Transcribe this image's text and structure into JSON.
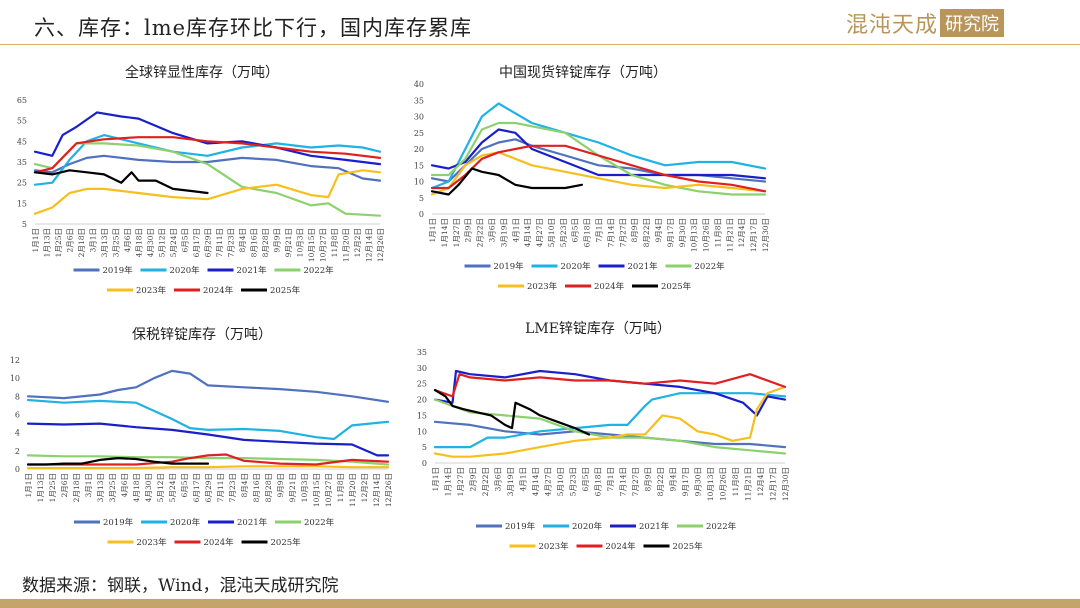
{
  "slide": {
    "title": "六、库存：lme库存环比下行，国内库存累库",
    "logo_script": "混沌天成",
    "logo_box": "研究院",
    "source": "数据来源：钢联，Wind，混沌天成研究院"
  },
  "colors": {
    "2019年": "#4f71be",
    "2020年": "#1fb2e4",
    "2021年": "#1a1fc9",
    "2022年": "#8dd06e",
    "2023年": "#f7bf1d",
    "2024年": "#e02020",
    "2025年": "#000000"
  },
  "chart_data": [
    {
      "id": "global",
      "type": "line",
      "title": "全球锌显性库存（万吨）",
      "xlabel": "",
      "ylabel": "",
      "ylim": [
        5,
        65
      ],
      "yticks": [
        5,
        15,
        25,
        35,
        45,
        55,
        65
      ],
      "x_tick_labels": [
        "1月1日",
        "1月13日",
        "1月25日",
        "2月6日",
        "2月18日",
        "3月1日",
        "3月13日",
        "3月25日",
        "4月6日",
        "4月18日",
        "4月30日",
        "5月12日",
        "5月24日",
        "6月5日",
        "6月17日",
        "6月29日",
        "7月11日",
        "7月23日",
        "8月4日",
        "8月16日",
        "8月28日",
        "9月9日",
        "9月21日",
        "10月3日",
        "10月15日",
        "10月27日",
        "11月8日",
        "11月20日",
        "12月2日",
        "12月14日",
        "12月26日"
      ],
      "grid": false,
      "legend": "bottom",
      "series": [
        {
          "name": "2019年",
          "x": [
            0,
            0.05,
            0.1,
            0.15,
            0.2,
            0.3,
            0.4,
            0.5,
            0.6,
            0.7,
            0.8,
            0.88,
            0.95,
            1
          ],
          "y": [
            31,
            30,
            34,
            37,
            38,
            36,
            35,
            35,
            37,
            36,
            33,
            32,
            27,
            26
          ]
        },
        {
          "name": "2020年",
          "x": [
            0,
            0.05,
            0.1,
            0.15,
            0.2,
            0.3,
            0.4,
            0.5,
            0.6,
            0.7,
            0.8,
            0.88,
            0.95,
            1
          ],
          "y": [
            24,
            25,
            36,
            45,
            48,
            44,
            40,
            38,
            42,
            44,
            42,
            43,
            42,
            40
          ]
        },
        {
          "name": "2021年",
          "x": [
            0,
            0.05,
            0.08,
            0.12,
            0.18,
            0.25,
            0.3,
            0.4,
            0.5,
            0.6,
            0.7,
            0.8,
            0.9,
            1
          ],
          "y": [
            40,
            38,
            48,
            52,
            59,
            57,
            56,
            49,
            44,
            45,
            42,
            38,
            36,
            34
          ]
        },
        {
          "name": "2022年",
          "x": [
            0,
            0.05,
            0.12,
            0.2,
            0.3,
            0.4,
            0.5,
            0.6,
            0.7,
            0.8,
            0.85,
            0.9,
            1
          ],
          "y": [
            34,
            32,
            44,
            44,
            43,
            40,
            34,
            23,
            20,
            14,
            15,
            10,
            9
          ]
        },
        {
          "name": "2023年",
          "x": [
            0,
            0.05,
            0.1,
            0.15,
            0.2,
            0.3,
            0.4,
            0.5,
            0.6,
            0.7,
            0.8,
            0.85,
            0.88,
            0.95,
            1
          ],
          "y": [
            10,
            13,
            20,
            22,
            22,
            20,
            18,
            17,
            22,
            24,
            19,
            18,
            29,
            31,
            30
          ]
        },
        {
          "name": "2024年",
          "x": [
            0,
            0.05,
            0.12,
            0.2,
            0.3,
            0.4,
            0.45,
            0.5,
            0.6,
            0.7,
            0.8,
            0.9,
            1
          ],
          "y": [
            30,
            32,
            44,
            46,
            47,
            47,
            46,
            45,
            44,
            42,
            40,
            39,
            37
          ]
        },
        {
          "name": "2025年",
          "x": [
            0,
            0.05,
            0.1,
            0.15,
            0.2,
            0.25,
            0.28,
            0.3,
            0.35,
            0.4,
            0.45,
            0.5
          ],
          "y": [
            30,
            29,
            31,
            30,
            29,
            25,
            30,
            26,
            26,
            22,
            21,
            20
          ]
        }
      ]
    },
    {
      "id": "china",
      "type": "line",
      "title": "中国现货锌锭库存（万吨）",
      "xlabel": "",
      "ylabel": "",
      "ylim": [
        0,
        40
      ],
      "yticks": [
        0,
        5,
        10,
        15,
        20,
        25,
        30,
        35,
        40
      ],
      "x_tick_labels": [
        "1月1日",
        "1月14日",
        "1月27日",
        "2月9日",
        "2月22日",
        "3月6日",
        "3月19日",
        "4月1日",
        "4月14日",
        "4月27日",
        "5月10日",
        "5月23日",
        "6月5日",
        "6月18日",
        "7月1日",
        "7月14日",
        "7月27日",
        "8月9日",
        "8月22日",
        "9月4日",
        "9月17日",
        "9月30日",
        "10月13日",
        "10月26日",
        "11月8日",
        "11月21日",
        "12月4日",
        "12月17日",
        "12月30日"
      ],
      "grid": false,
      "legend": "bottom",
      "series": [
        {
          "name": "2019年",
          "x": [
            0,
            0.05,
            0.1,
            0.15,
            0.2,
            0.25,
            0.3,
            0.4,
            0.5,
            0.6,
            0.7,
            0.8,
            0.9,
            1
          ],
          "y": [
            11,
            10,
            15,
            20,
            22,
            23,
            21,
            18,
            15,
            14,
            12,
            12,
            11,
            10
          ]
        },
        {
          "name": "2020年",
          "x": [
            0,
            0.05,
            0.1,
            0.15,
            0.2,
            0.25,
            0.3,
            0.4,
            0.5,
            0.6,
            0.7,
            0.8,
            0.9,
            1
          ],
          "y": [
            8,
            10,
            20,
            30,
            34,
            31,
            28,
            25,
            22,
            18,
            15,
            16,
            16,
            14
          ]
        },
        {
          "name": "2021年",
          "x": [
            0,
            0.05,
            0.1,
            0.15,
            0.2,
            0.25,
            0.3,
            0.4,
            0.5,
            0.6,
            0.7,
            0.8,
            0.9,
            1
          ],
          "y": [
            15,
            14,
            16,
            22,
            26,
            25,
            20,
            16,
            12,
            12,
            12,
            12,
            12,
            11
          ]
        },
        {
          "name": "2022年",
          "x": [
            0,
            0.05,
            0.1,
            0.15,
            0.2,
            0.25,
            0.3,
            0.4,
            0.5,
            0.6,
            0.7,
            0.8,
            0.9,
            1
          ],
          "y": [
            12,
            12,
            17,
            26,
            28,
            28,
            27,
            25,
            18,
            12,
            9,
            7,
            6,
            6
          ]
        },
        {
          "name": "2023年",
          "x": [
            0,
            0.05,
            0.1,
            0.15,
            0.2,
            0.25,
            0.3,
            0.4,
            0.5,
            0.6,
            0.7,
            0.8,
            0.9,
            1
          ],
          "y": [
            6,
            8,
            15,
            18,
            19,
            17,
            15,
            13,
            11,
            9,
            8,
            9,
            8,
            7
          ]
        },
        {
          "name": "2024年",
          "x": [
            0,
            0.05,
            0.1,
            0.15,
            0.2,
            0.25,
            0.3,
            0.4,
            0.5,
            0.6,
            0.7,
            0.8,
            0.9,
            1
          ],
          "y": [
            8,
            8,
            12,
            17,
            19,
            20,
            21,
            21,
            18,
            15,
            12,
            10,
            9,
            7
          ]
        },
        {
          "name": "2025年",
          "x": [
            0,
            0.05,
            0.08,
            0.12,
            0.15,
            0.2,
            0.25,
            0.3,
            0.35,
            0.4,
            0.45
          ],
          "y": [
            7,
            6,
            9,
            14,
            13,
            12,
            9,
            8,
            8,
            8,
            9
          ]
        }
      ]
    },
    {
      "id": "bonded",
      "type": "line",
      "title": "保税锌锭库存（万吨）",
      "xlabel": "",
      "ylabel": "",
      "ylim": [
        0,
        12
      ],
      "yticks": [
        0,
        2,
        4,
        6,
        8,
        10,
        12
      ],
      "x_tick_labels": [
        "1月1日",
        "1月13日",
        "1月25日",
        "2月6日",
        "2月18日",
        "3月1日",
        "3月13日",
        "3月25日",
        "4月6日",
        "4月18日",
        "4月30日",
        "5月12日",
        "5月24日",
        "6月5日",
        "6月17日",
        "6月29日",
        "7月11日",
        "7月23日",
        "8月4日",
        "8月16日",
        "8月28日",
        "9月9日",
        "9月21日",
        "10月3日",
        "10月15日",
        "10月27日",
        "11月8日",
        "11月20日",
        "12月2日",
        "12月14日",
        "12月26日"
      ],
      "grid": false,
      "legend": "bottom",
      "series": [
        {
          "name": "2019年",
          "x": [
            0,
            0.1,
            0.2,
            0.25,
            0.3,
            0.35,
            0.4,
            0.45,
            0.5,
            0.6,
            0.7,
            0.8,
            0.9,
            1
          ],
          "y": [
            8,
            7.8,
            8.2,
            8.7,
            9,
            10,
            10.8,
            10.5,
            9.2,
            9,
            8.8,
            8.5,
            8,
            7.4
          ]
        },
        {
          "name": "2020年",
          "x": [
            0,
            0.1,
            0.2,
            0.3,
            0.4,
            0.45,
            0.5,
            0.6,
            0.7,
            0.8,
            0.85,
            0.9,
            1
          ],
          "y": [
            7.6,
            7.3,
            7.5,
            7.3,
            5.5,
            4.5,
            4.3,
            4.4,
            4.2,
            3.5,
            3.3,
            4.8,
            5.2
          ]
        },
        {
          "name": "2021年",
          "x": [
            0,
            0.1,
            0.2,
            0.3,
            0.4,
            0.5,
            0.6,
            0.7,
            0.8,
            0.9,
            0.97,
            1
          ],
          "y": [
            5,
            4.9,
            5,
            4.6,
            4.3,
            3.8,
            3.2,
            3,
            2.8,
            2.7,
            1.5,
            1.5
          ]
        },
        {
          "name": "2022年",
          "x": [
            0,
            0.1,
            0.2,
            0.3,
            0.4,
            0.5,
            0.6,
            0.7,
            0.8,
            0.9,
            1
          ],
          "y": [
            1.5,
            1.4,
            1.4,
            1.3,
            1.3,
            1.2,
            1.2,
            1.1,
            1,
            0.8,
            0.5
          ]
        },
        {
          "name": "2023年",
          "x": [
            0,
            0.1,
            0.2,
            0.3,
            0.4,
            0.5,
            0.6,
            0.7,
            0.8,
            0.9,
            1
          ],
          "y": [
            0.1,
            0.1,
            0.1,
            0.1,
            0.2,
            0.2,
            0.3,
            0.3,
            0.3,
            0.2,
            0.2
          ]
        },
        {
          "name": "2024年",
          "x": [
            0,
            0.1,
            0.2,
            0.3,
            0.4,
            0.45,
            0.5,
            0.55,
            0.6,
            0.7,
            0.8,
            0.9,
            1
          ],
          "y": [
            0.5,
            0.5,
            0.5,
            0.5,
            0.8,
            1.2,
            1.5,
            1.6,
            0.9,
            0.6,
            0.5,
            1,
            0.8
          ]
        },
        {
          "name": "2025年",
          "x": [
            0,
            0.05,
            0.1,
            0.15,
            0.2,
            0.25,
            0.3,
            0.35,
            0.4,
            0.45,
            0.5
          ],
          "y": [
            0.5,
            0.5,
            0.6,
            0.6,
            1,
            1.2,
            1.1,
            0.8,
            0.6,
            0.6,
            0.6
          ]
        }
      ]
    },
    {
      "id": "lme",
      "type": "line",
      "title": "LME锌锭库存（万吨）",
      "xlabel": "",
      "ylabel": "",
      "ylim": [
        0,
        35
      ],
      "yticks": [
        0,
        5,
        10,
        15,
        20,
        25,
        30,
        35
      ],
      "x_tick_labels": [
        "1月1日",
        "1月14日",
        "1月27日",
        "2月9日",
        "2月22日",
        "3月6日",
        "3月19日",
        "4月1日",
        "4月14日",
        "4月27日",
        "5月10日",
        "5月23日",
        "6月5日",
        "6月18日",
        "7月1日",
        "7月14日",
        "7月27日",
        "8月9日",
        "8月22日",
        "9月4日",
        "9月17日",
        "9月30日",
        "10月13日",
        "10月26日",
        "11月8日",
        "11月21日",
        "12月4日",
        "12月17日",
        "12月30日"
      ],
      "grid": false,
      "legend": "bottom",
      "series": [
        {
          "name": "2019年",
          "x": [
            0,
            0.1,
            0.2,
            0.3,
            0.4,
            0.5,
            0.6,
            0.7,
            0.8,
            0.9,
            1
          ],
          "y": [
            13,
            12,
            10,
            9,
            10,
            9,
            8,
            7,
            6,
            6,
            5
          ]
        },
        {
          "name": "2020年",
          "x": [
            0,
            0.1,
            0.15,
            0.2,
            0.3,
            0.4,
            0.5,
            0.55,
            0.6,
            0.62,
            0.7,
            0.8,
            0.9,
            1
          ],
          "y": [
            5,
            5,
            8,
            8,
            10,
            11,
            12,
            12,
            18,
            20,
            22,
            22,
            22,
            21
          ]
        },
        {
          "name": "2021年",
          "x": [
            0,
            0.05,
            0.06,
            0.1,
            0.2,
            0.3,
            0.4,
            0.5,
            0.6,
            0.7,
            0.8,
            0.88,
            0.92,
            0.95,
            1
          ],
          "y": [
            20,
            19,
            29,
            28,
            27,
            29,
            28,
            26,
            25,
            24,
            22,
            19,
            15,
            21,
            20
          ]
        },
        {
          "name": "2022年",
          "x": [
            0,
            0.05,
            0.1,
            0.2,
            0.3,
            0.4,
            0.5,
            0.6,
            0.7,
            0.8,
            0.9,
            1
          ],
          "y": [
            20,
            18,
            16,
            15,
            14,
            10,
            8,
            8,
            7,
            5,
            4,
            3
          ]
        },
        {
          "name": "2023年",
          "x": [
            0,
            0.05,
            0.1,
            0.2,
            0.3,
            0.4,
            0.5,
            0.55,
            0.6,
            0.65,
            0.7,
            0.75,
            0.8,
            0.85,
            0.9,
            0.92,
            0.95,
            1
          ],
          "y": [
            3,
            2,
            2,
            3,
            5,
            7,
            8,
            9,
            9,
            15,
            14,
            10,
            9,
            7,
            8,
            17,
            22,
            24
          ]
        },
        {
          "name": "2024年",
          "x": [
            0,
            0.05,
            0.07,
            0.1,
            0.2,
            0.3,
            0.4,
            0.5,
            0.6,
            0.7,
            0.8,
            0.9,
            1
          ],
          "y": [
            23,
            21,
            28,
            27,
            26,
            27,
            26,
            26,
            25,
            26,
            25,
            28,
            24
          ]
        },
        {
          "name": "2025年",
          "x": [
            0,
            0.03,
            0.05,
            0.08,
            0.12,
            0.16,
            0.2,
            0.22,
            0.23,
            0.27,
            0.3,
            0.35,
            0.4,
            0.44
          ],
          "y": [
            23,
            21,
            18,
            17,
            16,
            15,
            12,
            11,
            19,
            17,
            15,
            13,
            11,
            9
          ]
        }
      ]
    }
  ]
}
